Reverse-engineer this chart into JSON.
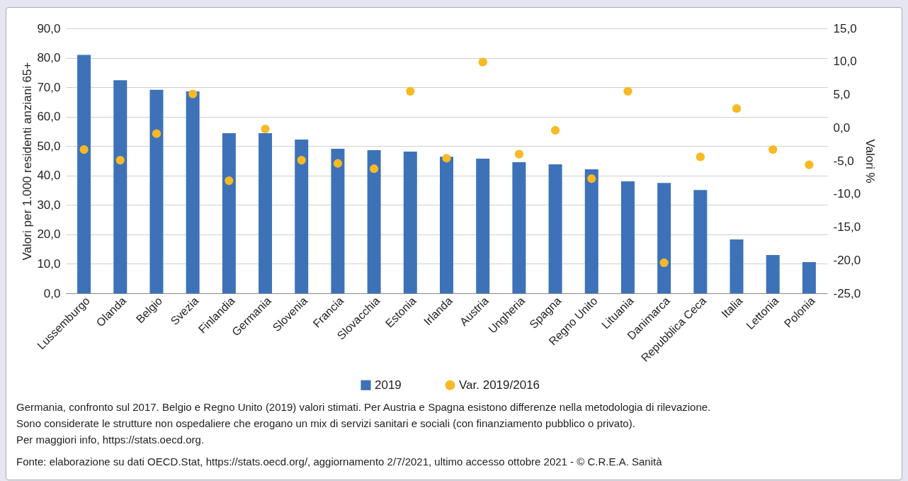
{
  "chart_data": {
    "type": "bar",
    "ylabel": "Valori per 1.000 residenti anziani 65+",
    "y2label": "Valori %",
    "categories": [
      "Lussemburgo",
      "Olanda",
      "Belgio",
      "Svezia",
      "Finlandia",
      "Germania",
      "Slovenia",
      "Francia",
      "Slovacchia",
      "Estonia",
      "Irlanda",
      "Austria",
      "Ungheria",
      "Spagna",
      "Regno Unito",
      "Lituania",
      "Danimarca",
      "Repubblica Ceca",
      "Italia",
      "Lettonia",
      "Polonia"
    ],
    "series": [
      {
        "name": "2019",
        "type": "bar",
        "color": "#3d72b8",
        "values": [
          81.0,
          72.4,
          69.1,
          68.6,
          54.4,
          54.4,
          52.2,
          49.1,
          48.6,
          48.1,
          46.4,
          45.7,
          44.5,
          43.8,
          42.1,
          38.0,
          37.5,
          35.1,
          18.3,
          13.0,
          10.6
        ]
      },
      {
        "name": "Var. 2019/2016",
        "type": "scatter",
        "axis": "y2",
        "color": "#f7b924",
        "values": [
          -3.3,
          -4.9,
          -0.9,
          5.1,
          -8.0,
          -0.2,
          -4.9,
          -5.4,
          -6.2,
          5.5,
          -4.6,
          9.9,
          -4.0,
          -0.4,
          -7.7,
          5.5,
          -20.4,
          -4.4,
          2.9,
          -3.3,
          -5.6
        ]
      }
    ],
    "ylim": [
      0,
      90
    ],
    "yticks": [
      {
        "value": 0,
        "label": "0,0"
      },
      {
        "value": 10,
        "label": "10,0"
      },
      {
        "value": 20,
        "label": "20,0"
      },
      {
        "value": 30,
        "label": "30,0"
      },
      {
        "value": 40,
        "label": "40,0"
      },
      {
        "value": 50,
        "label": "50,0"
      },
      {
        "value": 60,
        "label": "60,0"
      },
      {
        "value": 70,
        "label": "70,0"
      },
      {
        "value": 80,
        "label": "80,0"
      },
      {
        "value": 90,
        "label": "90,0"
      }
    ],
    "y2lim": [
      -25,
      15
    ],
    "y2ticks": [
      {
        "value": -25,
        "label": "-25,0"
      },
      {
        "value": -20,
        "label": "-20,0"
      },
      {
        "value": -15,
        "label": "-15,0"
      },
      {
        "value": -10,
        "label": "-10,0"
      },
      {
        "value": -5,
        "label": "-5,0"
      },
      {
        "value": 0,
        "label": "0,0"
      },
      {
        "value": 5,
        "label": "5,0"
      },
      {
        "value": 10,
        "label": "10,0"
      },
      {
        "value": 15,
        "label": "15,0"
      }
    ],
    "grid": "y",
    "legend": "bottom",
    "marker": "circle",
    "annotations": [
      "Germania, confronto sul 2017. Belgio e Regno Unito (2019) valori stimati. Per Austria e Spagna esistono differenze nella metodologia di rilevazione.",
      "Sono considerate le strutture non ospedaliere che erogano un mix di servizi sanitari e sociali (con finanziamento pubblico o privato).",
      "Per maggiori info, https://stats.oecd.org.",
      "Fonte: elaborazione su dati OECD.Stat, https://stats.oecd.org/, aggiornamento 2/7/2021, ultimo accesso ottobre 2021 - © C.R.E.A. Sanità"
    ]
  }
}
